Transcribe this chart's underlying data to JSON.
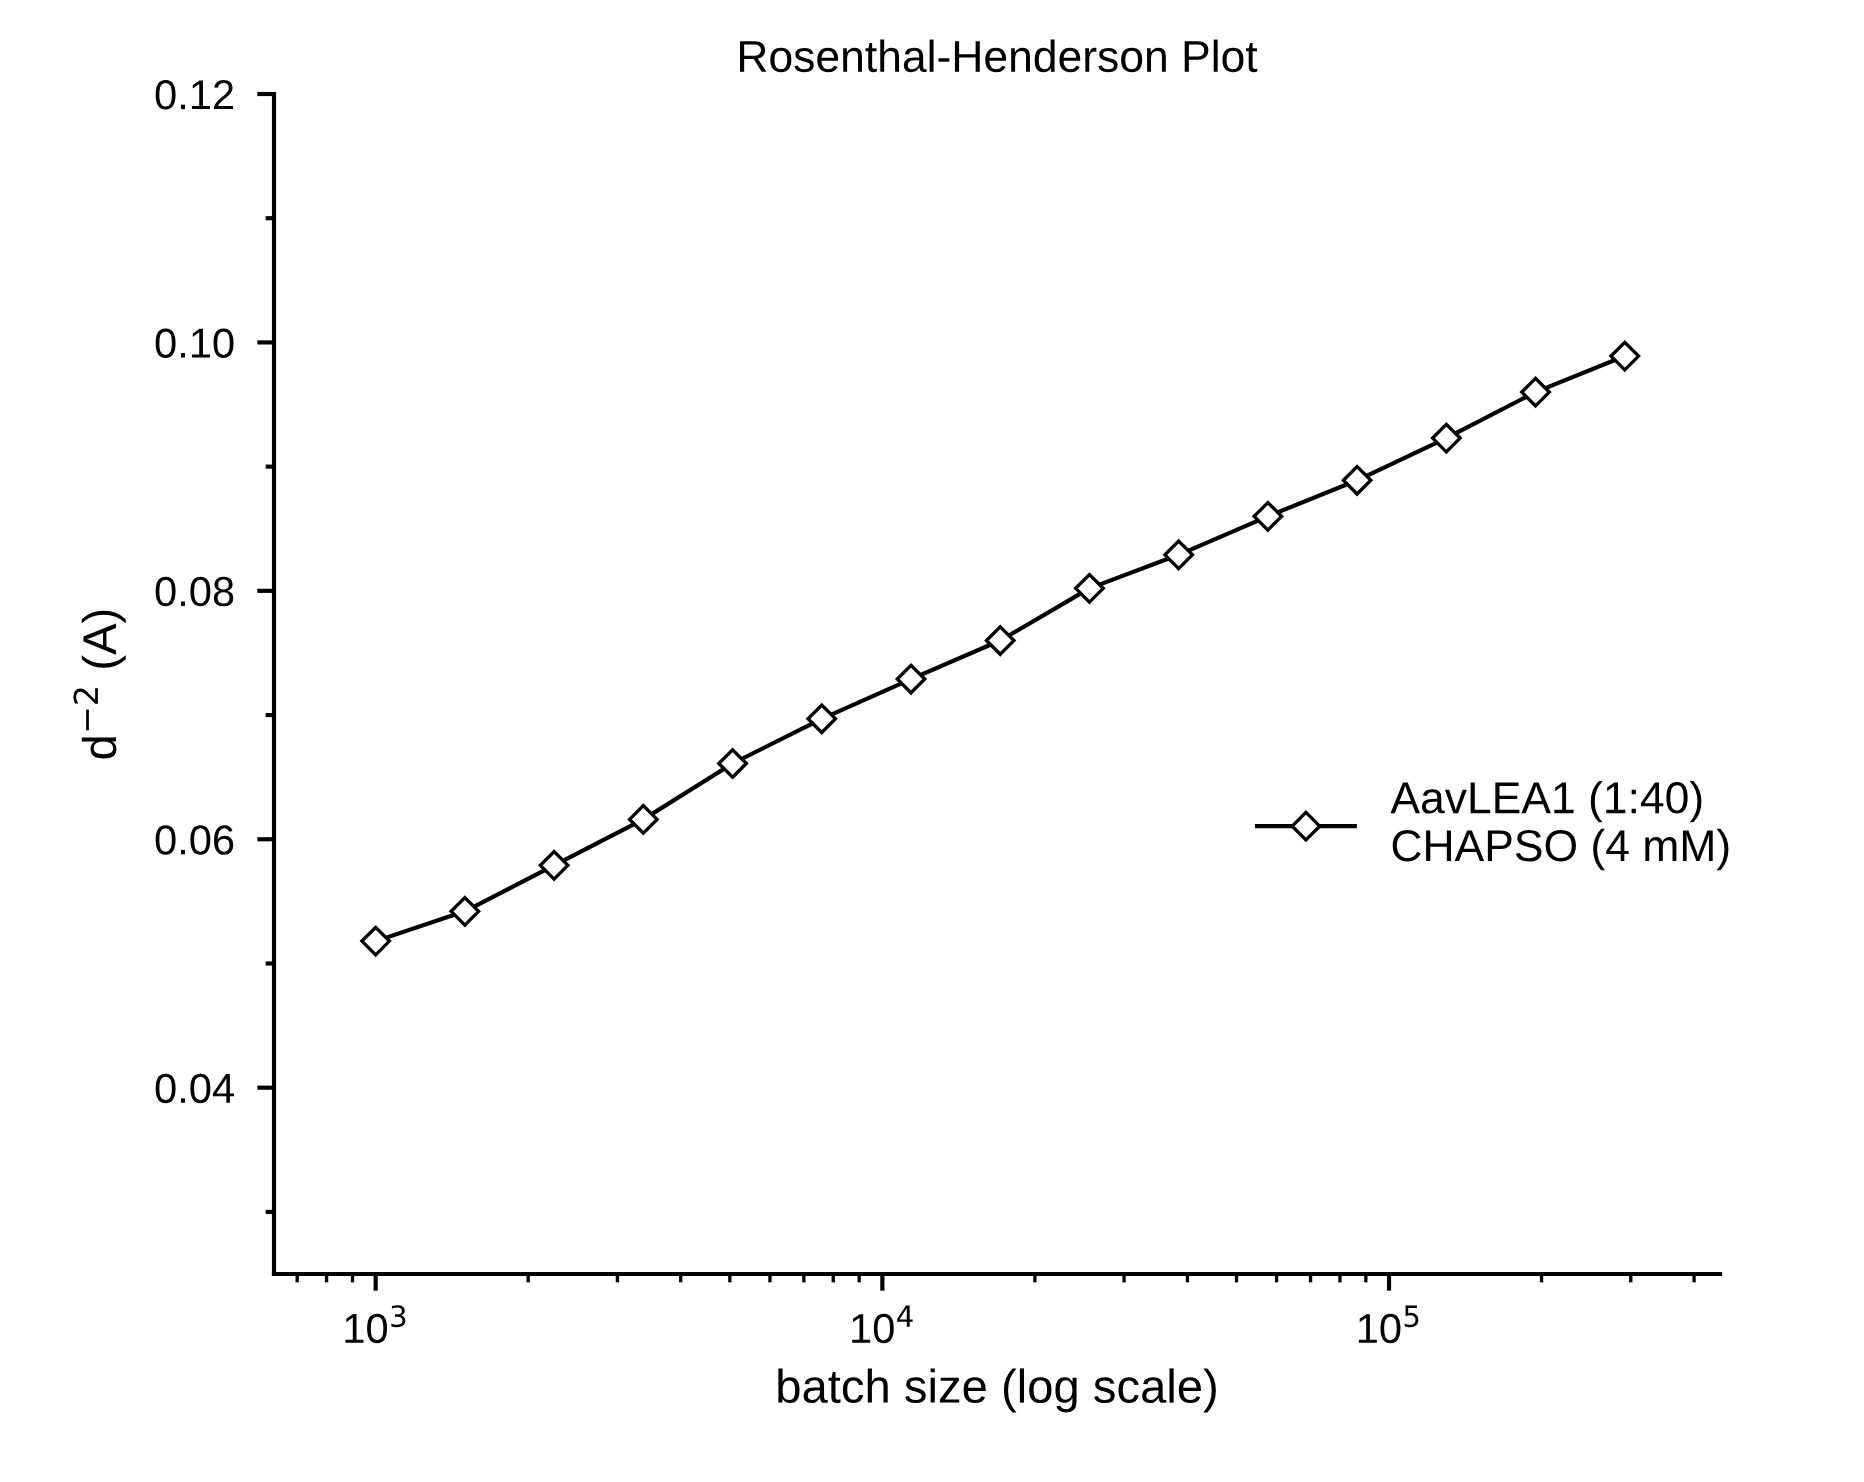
{
  "chart_data": {
    "type": "line",
    "title": "Rosenthal-Henderson Plot",
    "xlabel": "batch size (log scale)",
    "ylabel": "d$^{−2}$ (A)",
    "x": [
      1000,
      1500,
      2250,
      3375,
      5063,
      7594,
      11391,
      17086,
      25629,
      38443,
      57665,
      86498,
      129746,
      194620,
      291929
    ],
    "series": [
      {
        "name": "AavLEA1 (1:40)\nCHAPSO (4 mM)",
        "color": "#000000",
        "values": [
          0.0518,
          0.0542,
          0.0579,
          0.0616,
          0.0661,
          0.0697,
          0.0729,
          0.076,
          0.0802,
          0.0829,
          0.086,
          0.0889,
          0.0923,
          0.096,
          0.0989
        ]
      }
    ],
    "log": "x",
    "xlim": [
      630,
      450000
    ],
    "ylim": [
      0.025,
      0.12
    ],
    "xticks": [
      {
        "value": 1000,
        "label": "10$^{3}$"
      },
      {
        "value": 10000,
        "label": "10$^{4}$"
      },
      {
        "value": 100000,
        "label": "10$^{5}$"
      }
    ],
    "yticks": [
      {
        "value": 0.03,
        "label": null
      },
      {
        "value": 0.04,
        "label": "0.04"
      },
      {
        "value": 0.05,
        "label": null
      },
      {
        "value": 0.06,
        "label": "0.06"
      },
      {
        "value": 0.07,
        "label": null
      },
      {
        "value": 0.08,
        "label": "0.08"
      },
      {
        "value": 0.09,
        "label": null
      },
      {
        "value": 0.1,
        "label": "0.10"
      },
      {
        "value": 0.11,
        "label": null
      },
      {
        "value": 0.12,
        "label": "0.12"
      }
    ],
    "marker": "diamond",
    "line_style": "solid",
    "legend": "right",
    "grid": false
  }
}
